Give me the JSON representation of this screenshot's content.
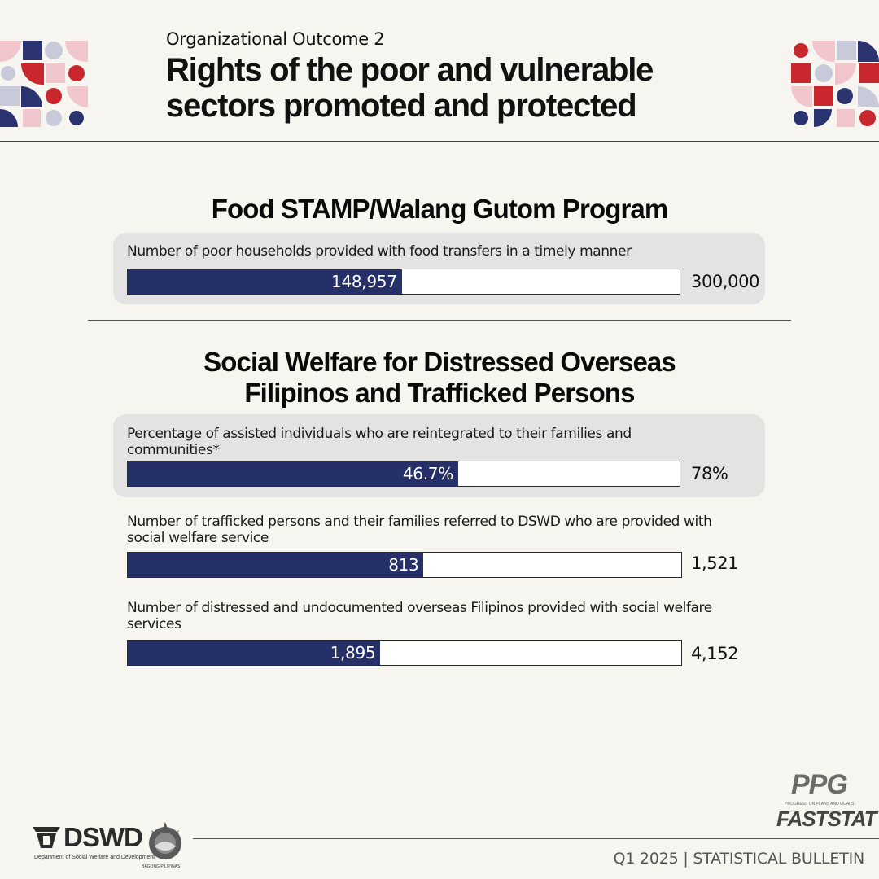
{
  "header": {
    "subtitle": "Organizational Outcome 2",
    "title_line1": "Rights of the poor and vulnerable",
    "title_line2": "sectors promoted and protected"
  },
  "sections": [
    {
      "title": "Food STAMP/Walang Gutom Program"
    },
    {
      "title_line1": "Social Welfare for Distressed Overseas",
      "title_line2": "Filipinos and Trafficked Persons"
    }
  ],
  "chart_data": {
    "type": "bar",
    "orientation": "horizontal",
    "indicators": [
      {
        "label": "Number of poor households provided with food transfers in a timely manner",
        "actual": 148957,
        "actual_label": "148,957",
        "target": 300000,
        "target_label": "300,000",
        "highlighted": true
      },
      {
        "label": "Percentage of assisted individuals who are reintegrated to their families and communities*",
        "actual": 46.7,
        "actual_label": "46.7%",
        "target": 78,
        "target_label": "78%",
        "highlighted": true
      },
      {
        "label": "Number of trafficked persons and their families referred to DSWD who are provided with social welfare service",
        "actual": 813,
        "actual_label": "813",
        "target": 1521,
        "target_label": "1,521",
        "highlighted": false
      },
      {
        "label": "Number of distressed and undocumented overseas Filipinos provided with social welfare services",
        "actual": 1895,
        "actual_label": "1,895",
        "target": 4152,
        "target_label": "4,152",
        "highlighted": false
      }
    ],
    "colors": {
      "fill": "#253069",
      "track": "#ffffff",
      "panel": "#e3e3e4"
    }
  },
  "footer": {
    "bulletin": "Q1 2025 | STATISTICAL BULLETIN",
    "dswd_logo_text": "DSWD",
    "dswd_logo_sub": "Department of Social Welfare and Development",
    "seal_text": "BAGONG PILIPINAS",
    "ppg_logo_text": "PPG",
    "ppg_logo_sub": "PROGRESS ON PLANS AND GOALS",
    "faststat_logo_text": "FASTSTAT"
  }
}
